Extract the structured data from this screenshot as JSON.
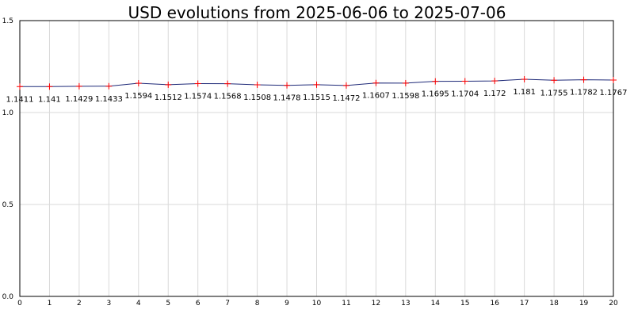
{
  "chart_data": {
    "type": "line",
    "title": "USD evolutions from 2025-06-06 to 2025-07-06",
    "xlabel": "",
    "ylabel": "",
    "x": [
      0,
      1,
      2,
      3,
      4,
      5,
      6,
      7,
      8,
      9,
      10,
      11,
      12,
      13,
      14,
      15,
      16,
      17,
      18,
      19,
      20
    ],
    "series": [
      {
        "values": [
          1.1411,
          1.141,
          1.1429,
          1.1433,
          1.1594,
          1.1512,
          1.1574,
          1.1568,
          1.1508,
          1.1478,
          1.1515,
          1.1472,
          1.1607,
          1.1598,
          1.1695,
          1.1704,
          1.172,
          1.181,
          1.1755,
          1.1782,
          1.1767
        ],
        "labels": [
          "1.1411",
          "1.141",
          "1.1429",
          "1.1433",
          "1.1594",
          "1.1512",
          "1.1574",
          "1.1568",
          "1.1508",
          "1.1478",
          "1.1515",
          "1.1472",
          "1.1607",
          "1.1598",
          "1.1695",
          "1.1704",
          "1.172",
          "1.181",
          "1.1755",
          "1.1782",
          "1.1767"
        ]
      }
    ],
    "xlim": [
      0,
      20
    ],
    "ylim": [
      0,
      1.5
    ],
    "yticks": [
      "0.0",
      "0.5",
      "1.0",
      "1.5"
    ],
    "xticks": [
      "0",
      "1",
      "2",
      "3",
      "4",
      "5",
      "6",
      "7",
      "8",
      "9",
      "10",
      "11",
      "12",
      "13",
      "14",
      "15",
      "16",
      "17",
      "18",
      "19",
      "20"
    ],
    "grid": true,
    "legend": "none",
    "colors": {
      "line": "#1f2a78",
      "marker": "#ff0000",
      "grid": "#d9d9d9"
    }
  }
}
